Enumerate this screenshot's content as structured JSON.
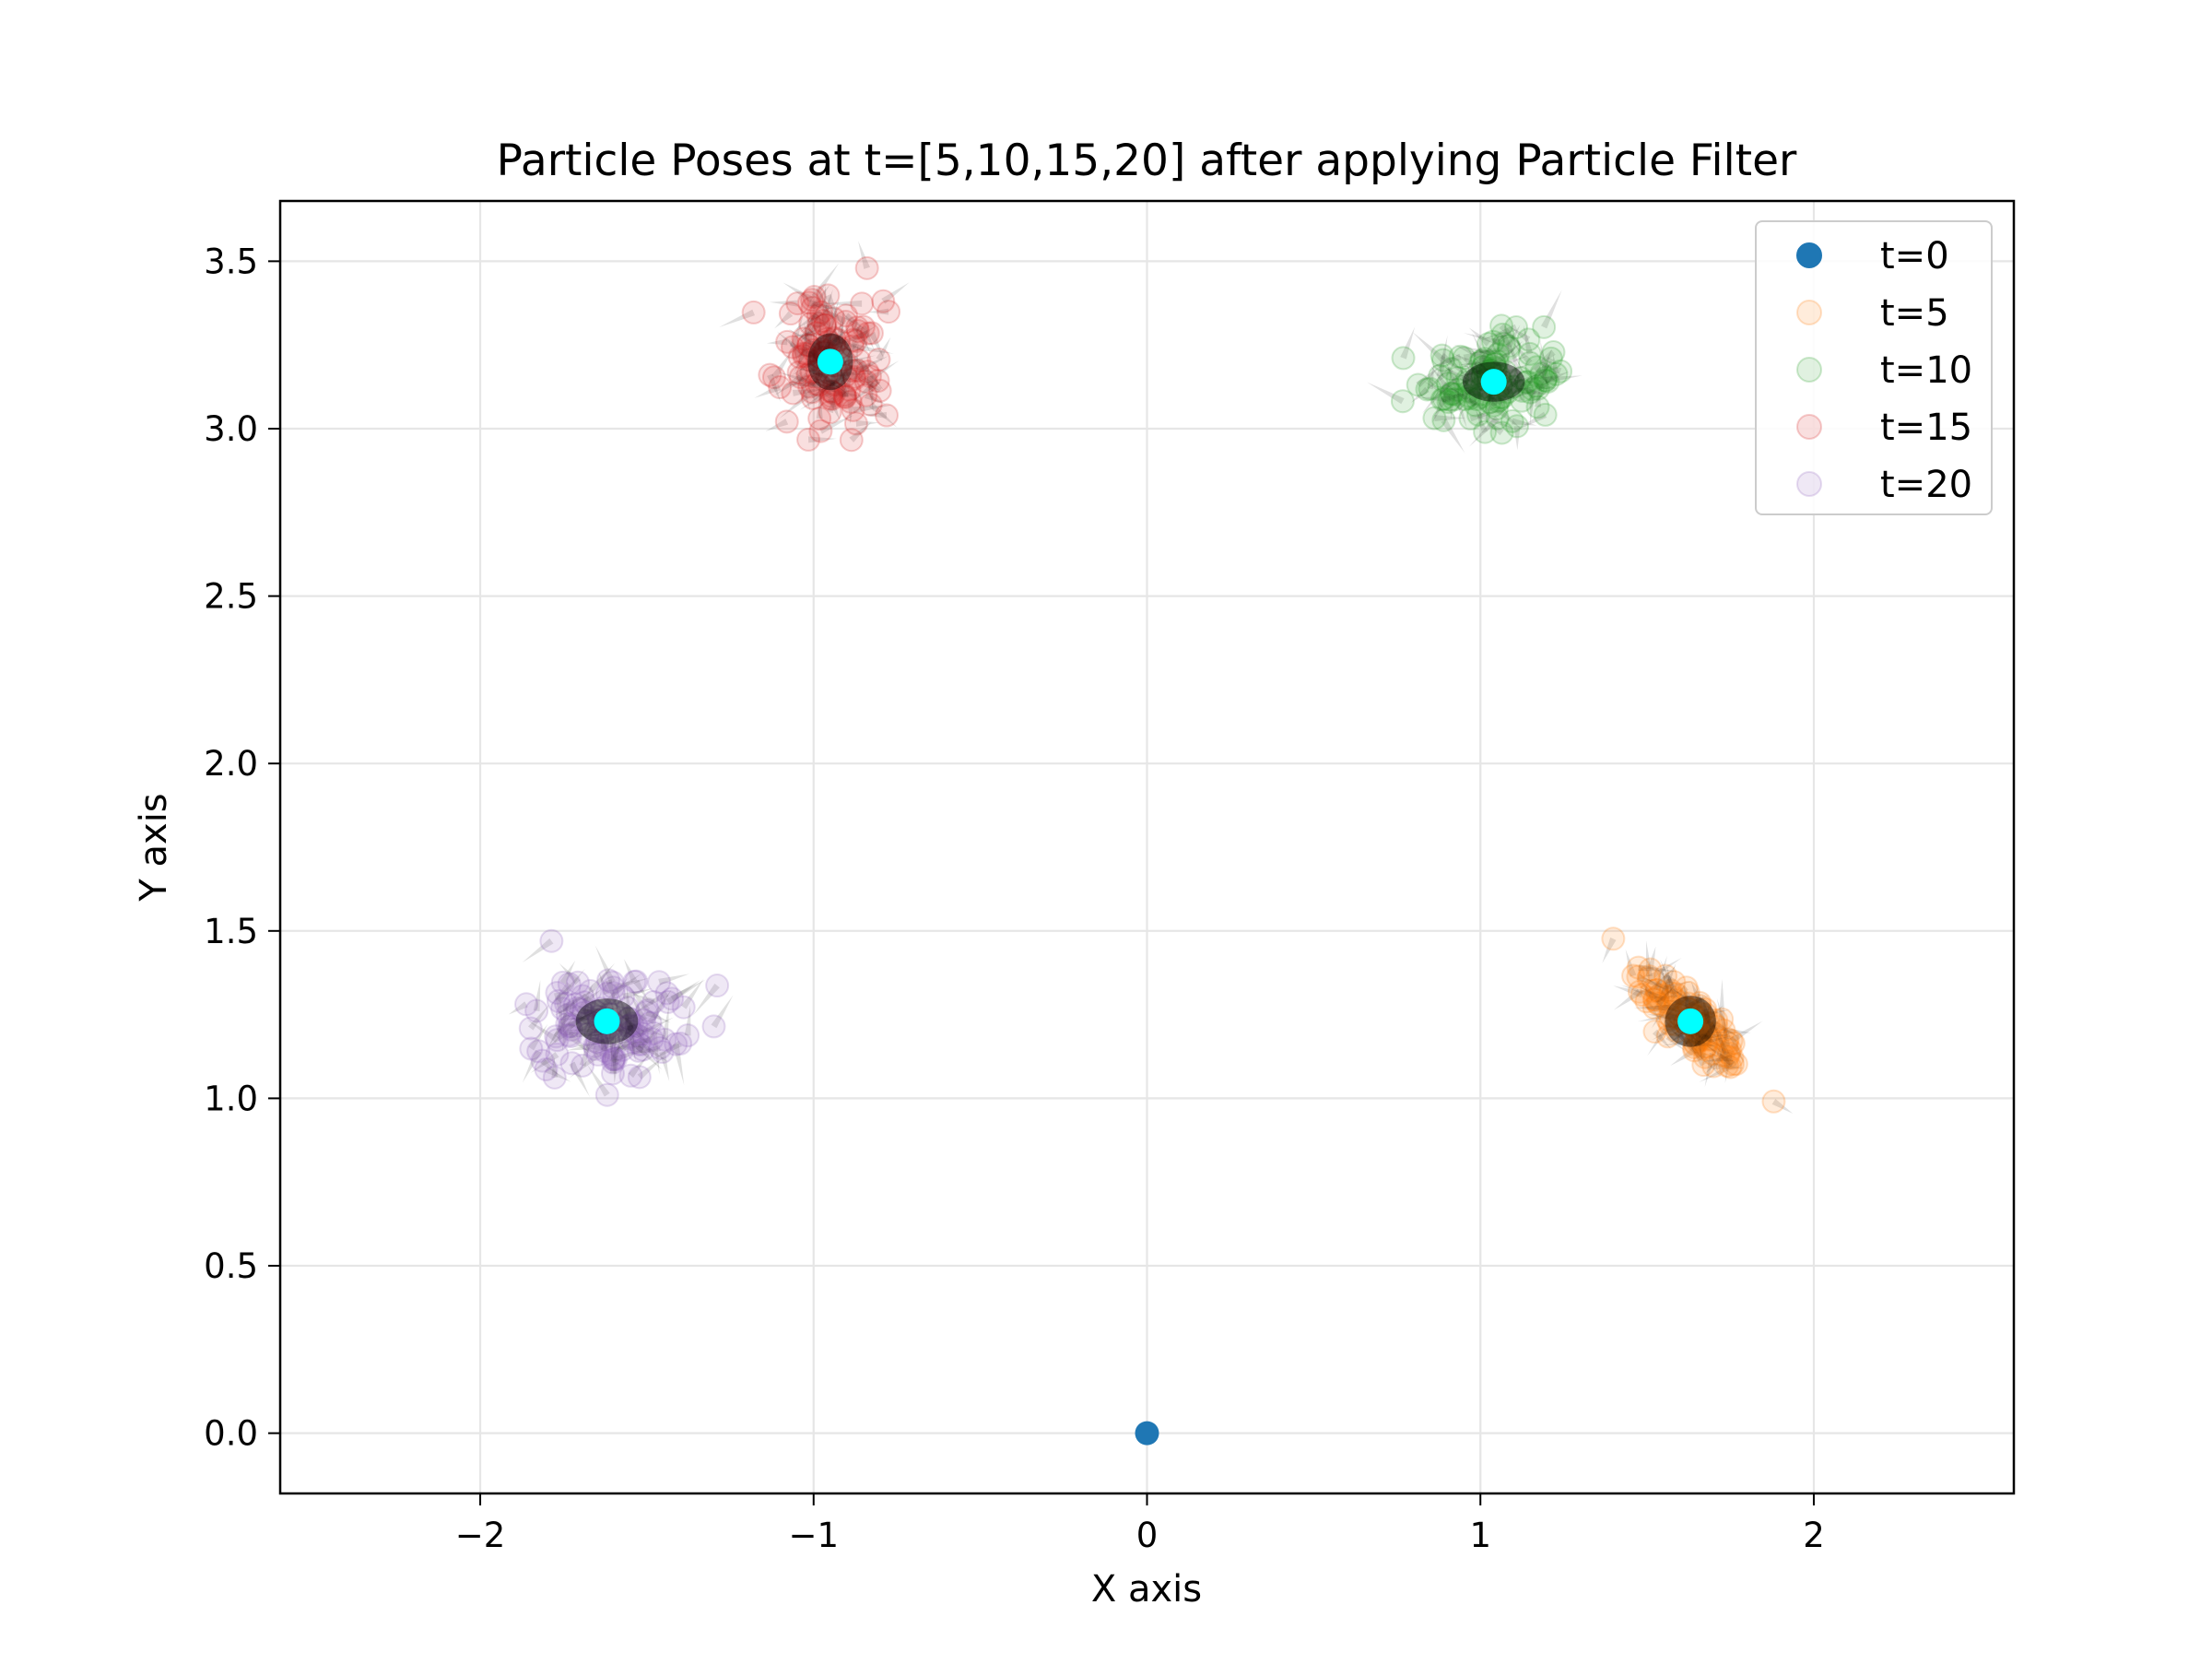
{
  "chart_data": {
    "type": "scatter",
    "title": "Particle Poses at t=[5,10,15,20] after applying Particle Filter",
    "xlabel": "X axis",
    "ylabel": "Y axis",
    "xlim": [
      -2.6,
      2.6
    ],
    "ylim": [
      -0.18,
      3.68
    ],
    "xticks": [
      -2,
      -1,
      0,
      1,
      2
    ],
    "xtick_labels": [
      "−2",
      "−1",
      "0",
      "1",
      "2"
    ],
    "yticks": [
      0.0,
      0.5,
      1.0,
      1.5,
      2.0,
      2.5,
      3.0,
      3.5
    ],
    "ytick_labels": [
      "0.0",
      "0.5",
      "1.0",
      "1.5",
      "2.0",
      "2.5",
      "3.0",
      "3.5"
    ],
    "grid": true,
    "legend_position": "top-right",
    "series": [
      {
        "name": "t=0",
        "color": "#1f77b4",
        "opacity": 1.0,
        "spread": [
          0,
          0
        ],
        "correlation": 0,
        "mean": [
          0.0,
          0.0
        ],
        "count": 1
      },
      {
        "name": "t=5",
        "color": "#ff7f0e",
        "opacity": 0.15,
        "spread": [
          0.09,
          0.09
        ],
        "correlation": -0.8,
        "mean": [
          1.63,
          1.23
        ],
        "count": 110
      },
      {
        "name": "t=10",
        "color": "#2ca02c",
        "opacity": 0.15,
        "spread": [
          0.11,
          0.07
        ],
        "correlation": 0.0,
        "mean": [
          1.04,
          3.14
        ],
        "count": 110
      },
      {
        "name": "t=15",
        "color": "#d62728",
        "opacity": 0.15,
        "spread": [
          0.08,
          0.1
        ],
        "correlation": 0.0,
        "mean": [
          -0.95,
          3.2
        ],
        "count": 110
      },
      {
        "name": "t=20",
        "color": "#9467bd",
        "opacity": 0.15,
        "spread": [
          0.11,
          0.08
        ],
        "correlation": 0.0,
        "mean": [
          -1.62,
          1.23
        ],
        "count": 110
      }
    ],
    "estimated_poses": {
      "color": "#00ffff",
      "points": [
        [
          1.63,
          1.23
        ],
        [
          1.04,
          3.14
        ],
        [
          -0.95,
          3.2
        ],
        [
          -1.62,
          1.23
        ]
      ]
    }
  }
}
